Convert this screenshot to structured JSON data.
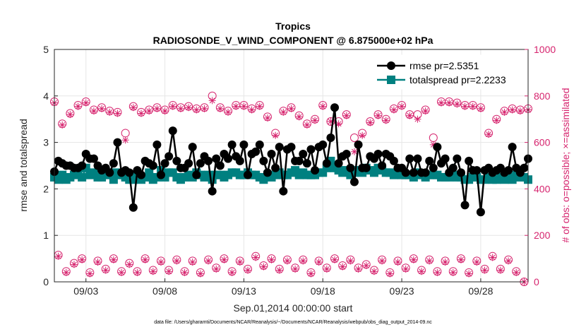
{
  "chart_data": {
    "type": "line",
    "title": "Tropics",
    "subtitle": "RADIOSONDE_V_WIND_COMPONENT @ 6.875000e+02 hPa",
    "xlabel": "Sep.01,2014 00:00:00 start",
    "ylabel": "rmse and totalspread",
    "ylabel_right": "# of obs: o=possible; ×=assimilated",
    "footnote": "data file: /Users/gharamti/Documents/NCAR/Reanalysis/~/Documents/NCAR/Reanalysis/webpub/obs_diag_output_2014-09.nc",
    "xlim": [
      1,
      31
    ],
    "ylim": [
      0,
      5
    ],
    "ylim_right": [
      0,
      1000
    ],
    "x_ticks": [
      3,
      8,
      13,
      18,
      23,
      28
    ],
    "x_tick_labels": [
      "09/03",
      "09/08",
      "09/13",
      "09/18",
      "09/23",
      "09/28"
    ],
    "y_ticks": [
      0,
      1,
      2,
      3,
      4,
      5
    ],
    "y_ticks_right": [
      0,
      200,
      400,
      600,
      800,
      1000
    ],
    "grid": true,
    "legend_position": "top-right",
    "legend": [
      "rmse pr=2.5351",
      "totalspread pr=2.2233"
    ],
    "x": [
      1.0,
      1.25,
      1.5,
      1.75,
      2.0,
      2.25,
      2.5,
      2.75,
      3.0,
      3.25,
      3.5,
      3.75,
      4.0,
      4.25,
      4.5,
      4.75,
      5.0,
      5.25,
      5.5,
      5.75,
      6.0,
      6.25,
      6.5,
      6.75,
      7.0,
      7.25,
      7.5,
      7.75,
      8.0,
      8.25,
      8.5,
      8.75,
      9.0,
      9.25,
      9.5,
      9.75,
      10.0,
      10.25,
      10.5,
      10.75,
      11.0,
      11.25,
      11.5,
      11.75,
      12.0,
      12.25,
      12.5,
      12.75,
      13.0,
      13.25,
      13.5,
      13.75,
      14.0,
      14.25,
      14.5,
      14.75,
      15.0,
      15.25,
      15.5,
      15.75,
      16.0,
      16.25,
      16.5,
      16.75,
      17.0,
      17.25,
      17.5,
      17.75,
      18.0,
      18.25,
      18.5,
      18.75,
      19.0,
      19.25,
      19.5,
      19.75,
      20.0,
      20.25,
      20.5,
      20.75,
      21.0,
      21.25,
      21.5,
      21.75,
      22.0,
      22.25,
      22.5,
      22.75,
      23.0,
      23.25,
      23.5,
      23.75,
      24.0,
      24.25,
      24.5,
      24.75,
      25.0,
      25.25,
      25.5,
      25.75,
      26.0,
      26.25,
      26.5,
      26.75,
      27.0,
      27.25,
      27.5,
      27.75,
      28.0,
      28.25,
      28.5,
      28.75,
      29.0,
      29.25,
      29.5,
      29.75,
      30.0,
      30.25,
      30.5,
      30.75,
      31.0
    ],
    "series": [
      {
        "name": "rmse pr=2.5351",
        "color": "#000000",
        "marker": "circle",
        "values": [
          2.37,
          2.6,
          2.55,
          2.5,
          2.5,
          2.45,
          2.45,
          2.5,
          2.75,
          2.65,
          2.65,
          2.5,
          2.4,
          2.45,
          2.35,
          2.55,
          3.0,
          2.35,
          2.4,
          2.35,
          1.6,
          2.4,
          2.3,
          2.6,
          2.55,
          2.5,
          2.95,
          2.3,
          2.55,
          2.7,
          3.25,
          2.6,
          2.45,
          2.45,
          2.55,
          2.9,
          2.3,
          2.55,
          2.7,
          2.6,
          1.95,
          2.65,
          2.5,
          2.75,
          2.65,
          2.95,
          2.7,
          2.6,
          2.95,
          2.3,
          2.75,
          2.8,
          2.95,
          2.6,
          2.35,
          2.75,
          2.45,
          2.9,
          1.95,
          2.85,
          2.9,
          2.6,
          2.6,
          2.75,
          2.55,
          2.85,
          2.4,
          2.9,
          2.95,
          2.55,
          3.1,
          3.75,
          2.55,
          2.7,
          2.75,
          2.45,
          2.15,
          2.95,
          2.45,
          2.45,
          2.7,
          2.65,
          2.75,
          2.5,
          2.75,
          2.7,
          2.6,
          2.45,
          2.45,
          2.35,
          2.65,
          2.35,
          2.65,
          2.35,
          2.35,
          2.6,
          2.45,
          2.9,
          2.55,
          2.65,
          2.35,
          2.45,
          2.65,
          2.35,
          1.65,
          2.6,
          2.4,
          2.4,
          1.5,
          2.4,
          2.45,
          2.35,
          2.4,
          2.45,
          2.35,
          2.4,
          2.9,
          2.45,
          2.35,
          2.45,
          2.65
        ]
      },
      {
        "name": "totalspread pr=2.2233",
        "color": "#008080",
        "marker": "square",
        "values": [
          2.25,
          2.2,
          2.3,
          2.2,
          2.25,
          2.3,
          2.4,
          2.25,
          2.45,
          2.3,
          2.35,
          2.25,
          2.25,
          2.3,
          2.35,
          2.2,
          2.35,
          2.3,
          2.25,
          2.2,
          2.2,
          2.3,
          2.2,
          2.25,
          2.35,
          2.2,
          2.25,
          2.4,
          2.25,
          2.35,
          2.35,
          2.25,
          2.2,
          2.25,
          2.3,
          2.25,
          2.35,
          2.3,
          2.25,
          2.3,
          2.2,
          2.3,
          2.3,
          2.25,
          2.3,
          2.35,
          2.35,
          2.3,
          2.3,
          2.35,
          2.3,
          2.3,
          2.25,
          2.2,
          2.3,
          2.25,
          2.3,
          2.35,
          2.3,
          2.3,
          2.35,
          2.4,
          2.3,
          2.35,
          2.3,
          2.3,
          2.3,
          2.35,
          2.35,
          2.45,
          2.6,
          2.45,
          2.4,
          2.35,
          2.4,
          2.3,
          2.35,
          2.4,
          2.35,
          2.45,
          2.4,
          2.35,
          2.45,
          2.4,
          2.35,
          2.35,
          2.3,
          2.35,
          2.3,
          2.3,
          2.3,
          2.25,
          2.35,
          2.3,
          2.25,
          2.3,
          2.3,
          2.3,
          2.25,
          2.25,
          2.25,
          2.3,
          2.25,
          2.25,
          2.2,
          2.2,
          2.25,
          2.25,
          2.2,
          2.2,
          2.25,
          2.2,
          2.2,
          2.25,
          2.2,
          2.25,
          2.2,
          2.3,
          2.25,
          2.25,
          2.2
        ]
      },
      {
        "name": "obs possible (o)",
        "axis": "right",
        "color": "#d6246e",
        "marker": "open-circle",
        "x": [
          1.0,
          1.5,
          2.0,
          2.5,
          3.0,
          3.5,
          4.0,
          4.5,
          5.0,
          5.5,
          6.0,
          6.5,
          7.0,
          7.5,
          8.0,
          8.5,
          9.0,
          9.5,
          10.0,
          10.5,
          11.0,
          11.5,
          12.0,
          12.5,
          13.0,
          13.5,
          14.0,
          14.5,
          15.0,
          15.5,
          16.0,
          16.5,
          17.0,
          17.5,
          18.0,
          18.5,
          19.0,
          19.5,
          20.0,
          20.5,
          21.0,
          21.5,
          22.0,
          22.5,
          23.0,
          23.5,
          24.0,
          24.5,
          25.0,
          25.5,
          26.0,
          26.5,
          27.0,
          27.5,
          28.0,
          28.5,
          29.0,
          29.5,
          30.0,
          30.5,
          31.0,
          1.25,
          1.75,
          2.25,
          2.75,
          3.25,
          3.75,
          4.25,
          4.75,
          5.25,
          5.75,
          6.25,
          6.75,
          7.25,
          7.75,
          8.25,
          8.75,
          9.25,
          9.75,
          10.25,
          10.75,
          11.25,
          11.75,
          12.25,
          12.75,
          13.25,
          13.75,
          14.25,
          14.75,
          15.25,
          15.75,
          16.25,
          16.75,
          17.25,
          17.75,
          18.25,
          18.75,
          19.25,
          19.75,
          20.25,
          20.75,
          21.25,
          21.75,
          22.25,
          22.75,
          23.25,
          23.75,
          24.25,
          24.75,
          25.25,
          25.75,
          26.25,
          26.75,
          27.25,
          27.75,
          28.25,
          28.75,
          29.25,
          29.75,
          30.25,
          30.75
        ],
        "values": [
          775,
          680,
          725,
          760,
          775,
          740,
          750,
          735,
          730,
          640,
          755,
          730,
          740,
          750,
          740,
          760,
          750,
          755,
          745,
          750,
          800,
          750,
          735,
          760,
          760,
          745,
          760,
          710,
          640,
          735,
          750,
          715,
          680,
          700,
          760,
          690,
          690,
          720,
          620,
          640,
          690,
          720,
          700,
          745,
          760,
          720,
          720,
          740,
          620,
          775,
          775,
          770,
          760,
          760,
          750,
          640,
          700,
          735,
          745,
          740,
          745,
          115,
          45,
          80,
          100,
          40,
          90,
          55,
          100,
          45,
          80,
          45,
          100,
          50,
          90,
          50,
          95,
          45,
          90,
          40,
          95,
          60,
          100,
          45,
          90,
          55,
          110,
          70,
          100,
          55,
          95,
          60,
          95,
          40,
          90,
          60,
          100,
          70,
          95,
          60,
          75,
          50,
          95,
          40,
          90,
          60,
          100,
          50,
          95,
          45,
          90,
          45,
          100,
          40,
          90,
          55,
          110,
          55,
          95,
          45,
          0
        ]
      },
      {
        "name": "obs assimilated (×)",
        "axis": "right",
        "color": "#d6246e",
        "marker": "asterisk",
        "x": [
          1.0,
          1.5,
          2.0,
          2.5,
          3.0,
          3.5,
          4.0,
          4.5,
          5.0,
          5.5,
          6.0,
          6.5,
          7.0,
          7.5,
          8.0,
          8.5,
          9.0,
          9.5,
          10.0,
          10.5,
          11.0,
          11.5,
          12.0,
          12.5,
          13.0,
          13.5,
          14.0,
          14.5,
          15.0,
          15.5,
          16.0,
          16.5,
          17.0,
          17.5,
          18.0,
          18.5,
          19.0,
          19.5,
          20.0,
          20.5,
          21.0,
          21.5,
          22.0,
          22.5,
          23.0,
          23.5,
          24.0,
          24.5,
          25.0,
          25.5,
          26.0,
          26.5,
          27.0,
          27.5,
          28.0,
          28.5,
          29.0,
          29.5,
          30.0,
          30.5,
          31.0,
          1.25,
          1.75,
          2.25,
          2.75,
          3.25,
          3.75,
          4.25,
          4.75,
          5.25,
          5.75,
          6.25,
          6.75,
          7.25,
          7.75,
          8.25,
          8.75,
          9.25,
          9.75,
          10.25,
          10.75,
          11.25,
          11.75,
          12.25,
          12.75,
          13.25,
          13.75,
          14.25,
          14.75,
          15.25,
          15.75,
          16.25,
          16.75,
          17.25,
          17.75,
          18.25,
          18.75,
          19.25,
          19.75,
          20.25,
          20.75,
          21.25,
          21.75,
          22.25,
          22.75,
          23.25,
          23.75,
          24.25,
          24.75,
          25.25,
          25.75,
          26.25,
          26.75,
          27.25,
          27.75,
          28.25,
          28.75,
          29.25,
          29.75,
          30.25,
          30.75
        ],
        "values": [
          770,
          675,
          720,
          755,
          770,
          735,
          745,
          730,
          725,
          610,
          750,
          725,
          735,
          745,
          735,
          755,
          745,
          750,
          740,
          745,
          780,
          745,
          730,
          755,
          755,
          740,
          755,
          705,
          630,
          730,
          745,
          710,
          675,
          695,
          755,
          690,
          680,
          715,
          560,
          630,
          685,
          715,
          695,
          740,
          755,
          715,
          700,
          735,
          590,
          770,
          770,
          765,
          755,
          755,
          745,
          635,
          695,
          730,
          740,
          735,
          740,
          110,
          40,
          75,
          95,
          35,
          85,
          50,
          95,
          40,
          75,
          40,
          95,
          45,
          85,
          45,
          90,
          40,
          85,
          35,
          90,
          55,
          95,
          40,
          85,
          50,
          105,
          65,
          95,
          50,
          90,
          55,
          90,
          35,
          85,
          55,
          95,
          65,
          90,
          55,
          70,
          45,
          90,
          35,
          85,
          55,
          95,
          45,
          90,
          40,
          85,
          40,
          95,
          35,
          85,
          50,
          105,
          50,
          90,
          40,
          0
        ]
      }
    ]
  }
}
